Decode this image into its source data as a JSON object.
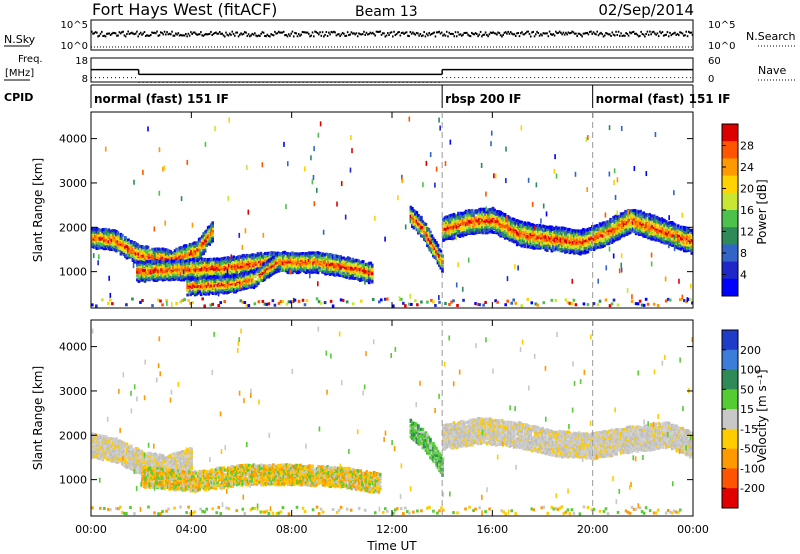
{
  "header": {
    "station": "Fort Hays West (fitACF)",
    "beam": "Beam 13",
    "date": "02/Sep/2014"
  },
  "panels": {
    "nsky_label": "N.Sky",
    "nsky_ticks": [
      "10^5",
      "10^0"
    ],
    "nsearch_label": "N.Search",
    "nsearch_ticks": [
      "10^5",
      "10^0"
    ],
    "freq_label_1": "Freq.",
    "freq_label_2": "[MHz]",
    "freq_ticks": [
      "18",
      "8"
    ],
    "nave_label": "Nave",
    "nave_ticks": [
      "60",
      "0"
    ],
    "cpid_label": "CPID",
    "cpid_segments": [
      {
        "label": "normal (fast) 151 IF",
        "start": 0,
        "end": 14
      },
      {
        "label": "rbsp 200 IF",
        "start": 14,
        "end": 20
      },
      {
        "label": "normal (fast) 151 IF",
        "start": 20,
        "end": 24
      }
    ]
  },
  "power_colorbar": {
    "label": "Power [dB]",
    "ticks": [
      "28",
      "24",
      "20",
      "16",
      "12",
      "8",
      "4"
    ],
    "colors": [
      "#dd0000",
      "#ff5500",
      "#ff9900",
      "#ffd200",
      "#c8e632",
      "#4cc24c",
      "#2e8b57",
      "#3264c8",
      "#1e28c8",
      "#0000ff"
    ]
  },
  "velocity_colorbar": {
    "label": "Velocity [m s⁻¹]",
    "ticks": [
      "200",
      "100",
      "50",
      "15",
      "-15",
      "-50",
      "-100",
      "-200"
    ],
    "colors": [
      "#1e3cc8",
      "#3c7ddc",
      "#2e8b57",
      "#55cc33",
      "#c8c8c8",
      "#ffcc00",
      "#ff9900",
      "#ff5500",
      "#e00000"
    ]
  },
  "chart_data": {
    "type": "heatmap",
    "xlabel": "Time UT",
    "x_ticks": [
      "00:00",
      "04:00",
      "08:00",
      "12:00",
      "16:00",
      "20:00",
      "00:00"
    ],
    "xlim_hours": [
      0,
      24
    ],
    "ylabel": "Slant Range [km]",
    "y_ticks": [
      4000,
      3000,
      2000,
      1000
    ],
    "ylim_km": [
      180,
      4600
    ],
    "mode_boundaries_hours": [
      14,
      20
    ],
    "frequency_mhz": [
      {
        "start": 0,
        "end": 1.9,
        "value": 13.2
      },
      {
        "start": 1.9,
        "end": 14,
        "value": 10.8
      },
      {
        "start": 14,
        "end": 24,
        "value": 13.2
      }
    ],
    "power_echo_bands": [
      {
        "t": [
          0,
          0.9,
          1.9,
          3.2,
          4.2,
          4.8
        ],
        "r": [
          1800,
          1750,
          1400,
          1300,
          1500,
          1950
        ],
        "width": 220
      },
      {
        "t": [
          1.8,
          3.5,
          5.2,
          7,
          9,
          10.5,
          11.2
        ],
        "r": [
          1050,
          1080,
          1120,
          1250,
          1250,
          1100,
          1000
        ],
        "width": 220
      },
      {
        "t": [
          3.8,
          5.5,
          6.5,
          7.5
        ],
        "r": [
          700,
          750,
          880,
          1300
        ],
        "width": 180
      },
      {
        "t": [
          12.7,
          13.2,
          13.6,
          14
        ],
        "r": [
          2300,
          2000,
          1600,
          1200
        ],
        "width": 200
      },
      {
        "t": [
          14,
          15,
          16,
          17,
          18,
          19.5,
          20.5,
          21.5,
          22.5,
          24
        ],
        "r": [
          2000,
          2150,
          2200,
          1900,
          1800,
          1700,
          1900,
          2200,
          2000,
          1700
        ],
        "width": 260
      }
    ],
    "velocity_echo_bands": [
      {
        "t": [
          0,
          1,
          2,
          3,
          4
        ],
        "r": [
          1800,
          1700,
          1400,
          1300,
          1500
        ],
        "width": 260,
        "category": "-15..15"
      },
      {
        "t": [
          2,
          4,
          6,
          8,
          10,
          11.5
        ],
        "r": [
          1100,
          1000,
          1150,
          1150,
          1100,
          950
        ],
        "width": 220,
        "category": "-50..-15"
      },
      {
        "t": [
          12.7,
          13.3,
          14
        ],
        "r": [
          2200,
          1900,
          1300
        ],
        "width": 200,
        "category": "15..50"
      },
      {
        "t": [
          14,
          15.5,
          17,
          18.5,
          20,
          21.5,
          23,
          24
        ],
        "r": [
          2000,
          2150,
          2050,
          1850,
          1800,
          1950,
          2050,
          1800
        ],
        "width": 280,
        "category": "-15..15"
      }
    ]
  }
}
